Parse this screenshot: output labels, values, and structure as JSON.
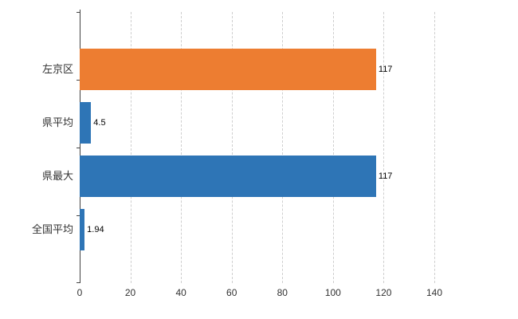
{
  "chart_data": {
    "type": "bar",
    "orientation": "horizontal",
    "title": "",
    "xlabel": "",
    "ylabel": "",
    "categories": [
      "左京区",
      "県平均",
      "県最大",
      "全国平均"
    ],
    "values": [
      117,
      4.5,
      117,
      1.94
    ],
    "value_labels": [
      "117",
      "4.5",
      "117",
      "1.94"
    ],
    "bar_colors": [
      "#ed7d31",
      "#2e75b6",
      "#2e75b6",
      "#2e75b6"
    ],
    "xlim": [
      0,
      140
    ],
    "x_ticks": [
      0,
      20,
      40,
      60,
      80,
      100,
      120,
      140
    ],
    "grid": true,
    "legend": "none"
  },
  "colors": {
    "background": "#ffffff",
    "axis": "#444444",
    "grid": "#cfcfcf",
    "tick_label": "#333333",
    "category_label": "#333333",
    "value_label": "#000000"
  }
}
